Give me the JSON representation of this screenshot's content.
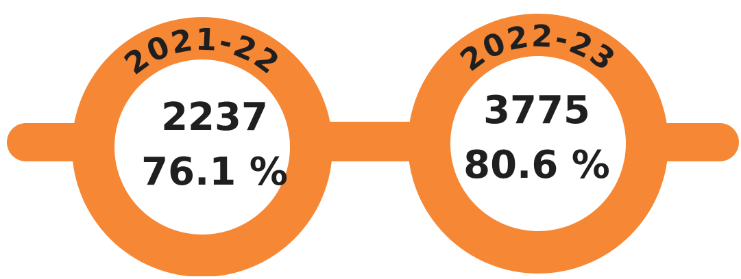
{
  "lenses": [
    {
      "year": "2021-22",
      "count": "2237",
      "percent": "76.1 %"
    },
    {
      "year": "2022-23",
      "count": "3775",
      "percent": "80.6 %"
    }
  ]
}
